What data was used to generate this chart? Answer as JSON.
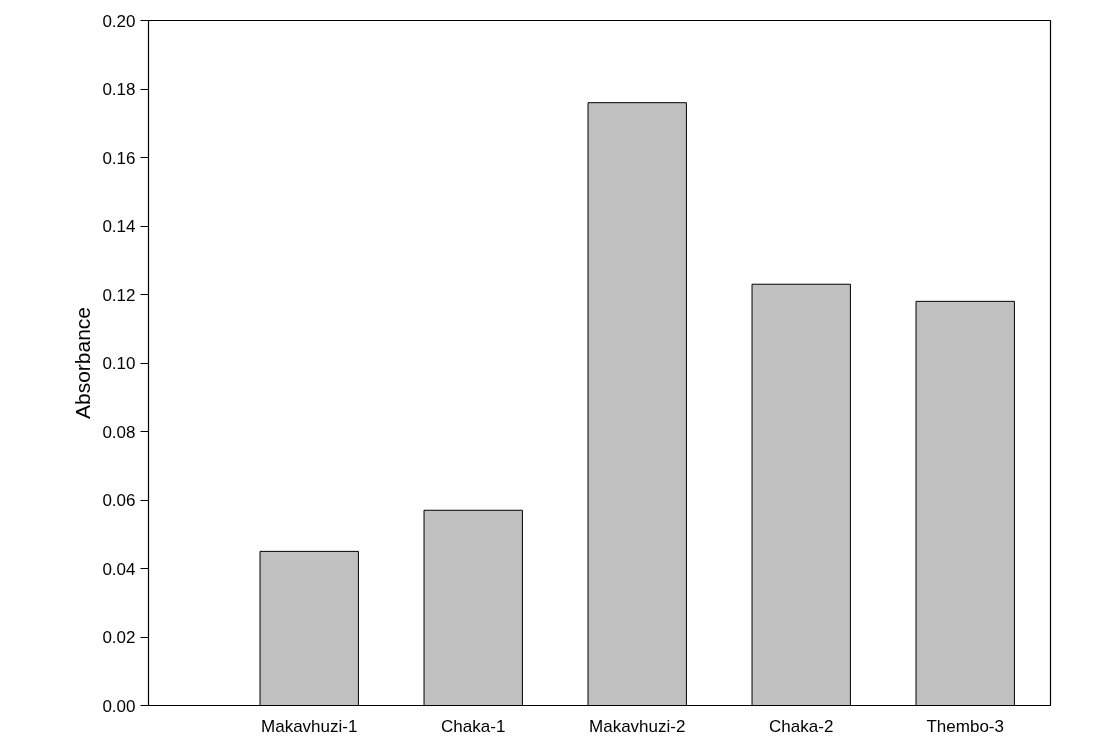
{
  "chart_data": {
    "type": "bar",
    "ylabel": "Absorbance",
    "categories": [
      "Makavhuzi-1",
      "Chaka-1",
      "Makavhuzi-2",
      "Chaka-2",
      "Thembo-3"
    ],
    "values": [
      0.045,
      0.057,
      0.176,
      0.123,
      0.118
    ],
    "color": "#c0c0c0",
    "ylim": [
      0,
      0.2
    ],
    "yticks": [
      {
        "value": 0,
        "label": "0.00"
      },
      {
        "value": 0.02,
        "label": "0.02"
      },
      {
        "value": 0.04,
        "label": "0.04"
      },
      {
        "value": 0.06,
        "label": "0.06"
      },
      {
        "value": 0.08,
        "label": "0.08"
      },
      {
        "value": 0.1,
        "label": "0.10"
      },
      {
        "value": 0.12,
        "label": "0.12"
      },
      {
        "value": 0.14,
        "label": "0.14"
      },
      {
        "value": 0.16,
        "label": "0.16"
      },
      {
        "value": 0.18,
        "label": "0.18"
      },
      {
        "value": 0.2,
        "label": "0.20"
      }
    ],
    "grid": false
  }
}
